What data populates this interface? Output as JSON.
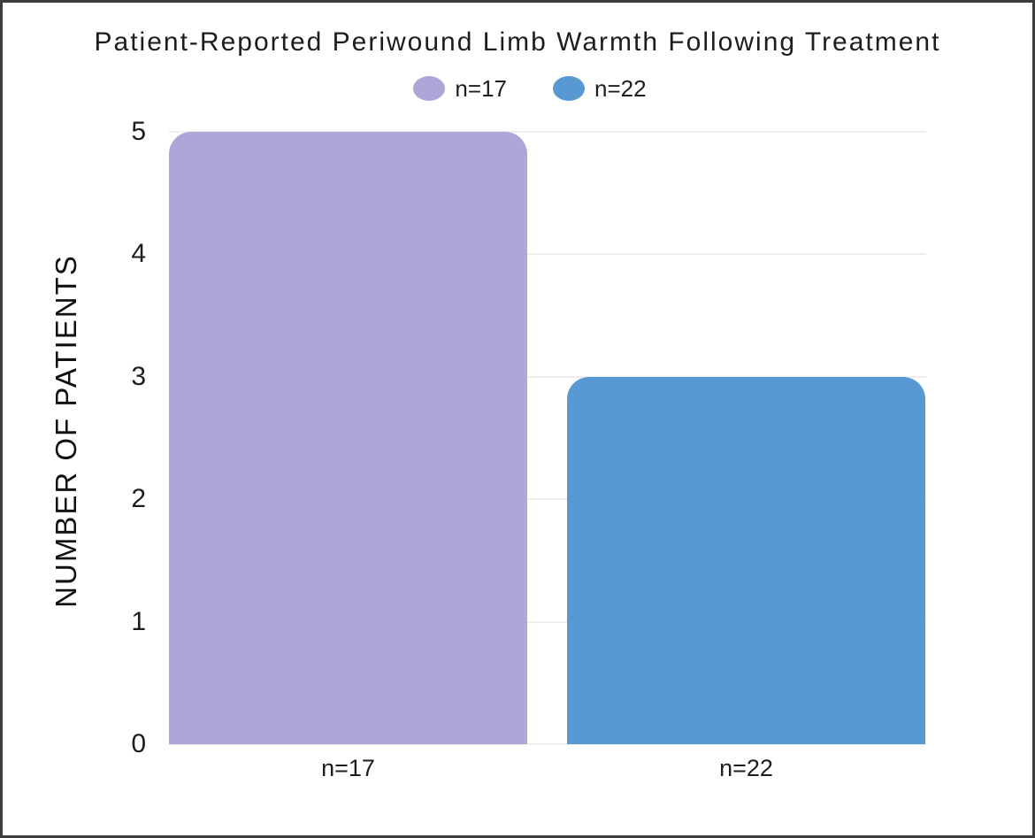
{
  "chart_data": {
    "type": "bar",
    "title": "Patient-Reported Periwound Limb Warmth Following Treatment",
    "categories": [
      "n=17",
      "n=22"
    ],
    "values": [
      5,
      3
    ],
    "bar_colors": [
      "#b0a5d7",
      "#5899d3"
    ],
    "xlabel": "",
    "ylabel": "NUMBER OF PATIENTS",
    "ylim": [
      0,
      5
    ],
    "yticks": [
      0,
      1,
      2,
      3,
      4,
      5
    ],
    "grid": true,
    "legend": {
      "position": "top",
      "entries": [
        {
          "label": "n=17",
          "color": "#b0a5d7"
        },
        {
          "label": "n=22",
          "color": "#5899d3"
        }
      ]
    }
  },
  "colors": {
    "frame_border": "#3c3c3c",
    "gridline": "#ededed",
    "text": "#1d1d1d",
    "background": "#ffffff"
  }
}
